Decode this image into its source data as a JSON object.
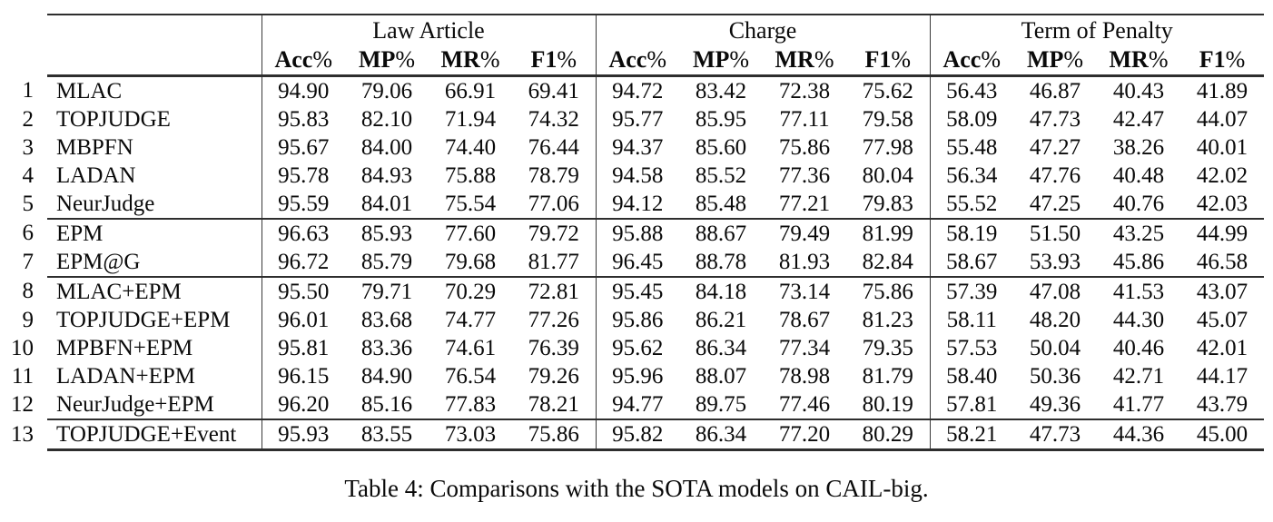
{
  "page": {
    "background": "#ffffff",
    "text_color": "#0a0a0a",
    "rule_color": "#2e2e2e"
  },
  "table": {
    "caption": "Table 4: Comparisons with the SOTA models on CAIL-big.",
    "groups": [
      {
        "label": "Law Article"
      },
      {
        "label": "Charge"
      },
      {
        "label": "Term of Penalty"
      }
    ],
    "metrics": [
      {
        "name": "Acc",
        "pct": "%"
      },
      {
        "name": "MP",
        "pct": "%"
      },
      {
        "name": "MR",
        "pct": "%"
      },
      {
        "name": "F1",
        "pct": "%"
      }
    ],
    "rows": [
      {
        "index": "1",
        "model": "MLAC",
        "law_article": [
          "94.90",
          "79.06",
          "66.91",
          "69.41"
        ],
        "charge": [
          "94.72",
          "83.42",
          "72.38",
          "75.62"
        ],
        "term_of_penalty": [
          "56.43",
          "46.87",
          "40.43",
          "41.89"
        ],
        "rule_after": false
      },
      {
        "index": "2",
        "model": "TOPJUDGE",
        "law_article": [
          "95.83",
          "82.10",
          "71.94",
          "74.32"
        ],
        "charge": [
          "95.77",
          "85.95",
          "77.11",
          "79.58"
        ],
        "term_of_penalty": [
          "58.09",
          "47.73",
          "42.47",
          "44.07"
        ],
        "rule_after": false
      },
      {
        "index": "3",
        "model": "MBPFN",
        "law_article": [
          "95.67",
          "84.00",
          "74.40",
          "76.44"
        ],
        "charge": [
          "94.37",
          "85.60",
          "75.86",
          "77.98"
        ],
        "term_of_penalty": [
          "55.48",
          "47.27",
          "38.26",
          "40.01"
        ],
        "rule_after": false
      },
      {
        "index": "4",
        "model": "LADAN",
        "law_article": [
          "95.78",
          "84.93",
          "75.88",
          "78.79"
        ],
        "charge": [
          "94.58",
          "85.52",
          "77.36",
          "80.04"
        ],
        "term_of_penalty": [
          "56.34",
          "47.76",
          "40.48",
          "42.02"
        ],
        "rule_after": false
      },
      {
        "index": "5",
        "model": "NeurJudge",
        "law_article": [
          "95.59",
          "84.01",
          "75.54",
          "77.06"
        ],
        "charge": [
          "94.12",
          "85.48",
          "77.21",
          "79.83"
        ],
        "term_of_penalty": [
          "55.52",
          "47.25",
          "40.76",
          "42.03"
        ],
        "rule_after": true
      },
      {
        "index": "6",
        "model": "EPM",
        "law_article": [
          "96.63",
          "85.93",
          "77.60",
          "79.72"
        ],
        "charge": [
          "95.88",
          "88.67",
          "79.49",
          "81.99"
        ],
        "term_of_penalty": [
          "58.19",
          "51.50",
          "43.25",
          "44.99"
        ],
        "rule_after": false
      },
      {
        "index": "7",
        "model": "EPM@G",
        "law_article": [
          "96.72",
          "85.79",
          "79.68",
          "81.77"
        ],
        "charge": [
          "96.45",
          "88.78",
          "81.93",
          "82.84"
        ],
        "term_of_penalty": [
          "58.67",
          "53.93",
          "45.86",
          "46.58"
        ],
        "rule_after": true
      },
      {
        "index": "8",
        "model": "MLAC+EPM",
        "law_article": [
          "95.50",
          "79.71",
          "70.29",
          "72.81"
        ],
        "charge": [
          "95.45",
          "84.18",
          "73.14",
          "75.86"
        ],
        "term_of_penalty": [
          "57.39",
          "47.08",
          "41.53",
          "43.07"
        ],
        "rule_after": false
      },
      {
        "index": "9",
        "model": "TOPJUDGE+EPM",
        "law_article": [
          "96.01",
          "83.68",
          "74.77",
          "77.26"
        ],
        "charge": [
          "95.86",
          "86.21",
          "78.67",
          "81.23"
        ],
        "term_of_penalty": [
          "58.11",
          "48.20",
          "44.30",
          "45.07"
        ],
        "rule_after": false
      },
      {
        "index": "10",
        "model": "MPBFN+EPM",
        "law_article": [
          "95.81",
          "83.36",
          "74.61",
          "76.39"
        ],
        "charge": [
          "95.62",
          "86.34",
          "77.34",
          "79.35"
        ],
        "term_of_penalty": [
          "57.53",
          "50.04",
          "40.46",
          "42.01"
        ],
        "rule_after": false
      },
      {
        "index": "11",
        "model": "LADAN+EPM",
        "law_article": [
          "96.15",
          "84.90",
          "76.54",
          "79.26"
        ],
        "charge": [
          "95.96",
          "88.07",
          "78.98",
          "81.79"
        ],
        "term_of_penalty": [
          "58.40",
          "50.36",
          "42.71",
          "44.17"
        ],
        "rule_after": false
      },
      {
        "index": "12",
        "model": "NeurJudge+EPM",
        "law_article": [
          "96.20",
          "85.16",
          "77.83",
          "78.21"
        ],
        "charge": [
          "94.77",
          "89.75",
          "77.46",
          "80.19"
        ],
        "term_of_penalty": [
          "57.81",
          "49.36",
          "41.77",
          "43.79"
        ],
        "rule_after": true
      },
      {
        "index": "13",
        "model": "TOPJUDGE+Event",
        "law_article": [
          "95.93",
          "83.55",
          "73.03",
          "75.86"
        ],
        "charge": [
          "95.82",
          "86.34",
          "77.20",
          "80.29"
        ],
        "term_of_penalty": [
          "58.21",
          "47.73",
          "44.36",
          "45.00"
        ],
        "rule_after": false
      }
    ]
  }
}
